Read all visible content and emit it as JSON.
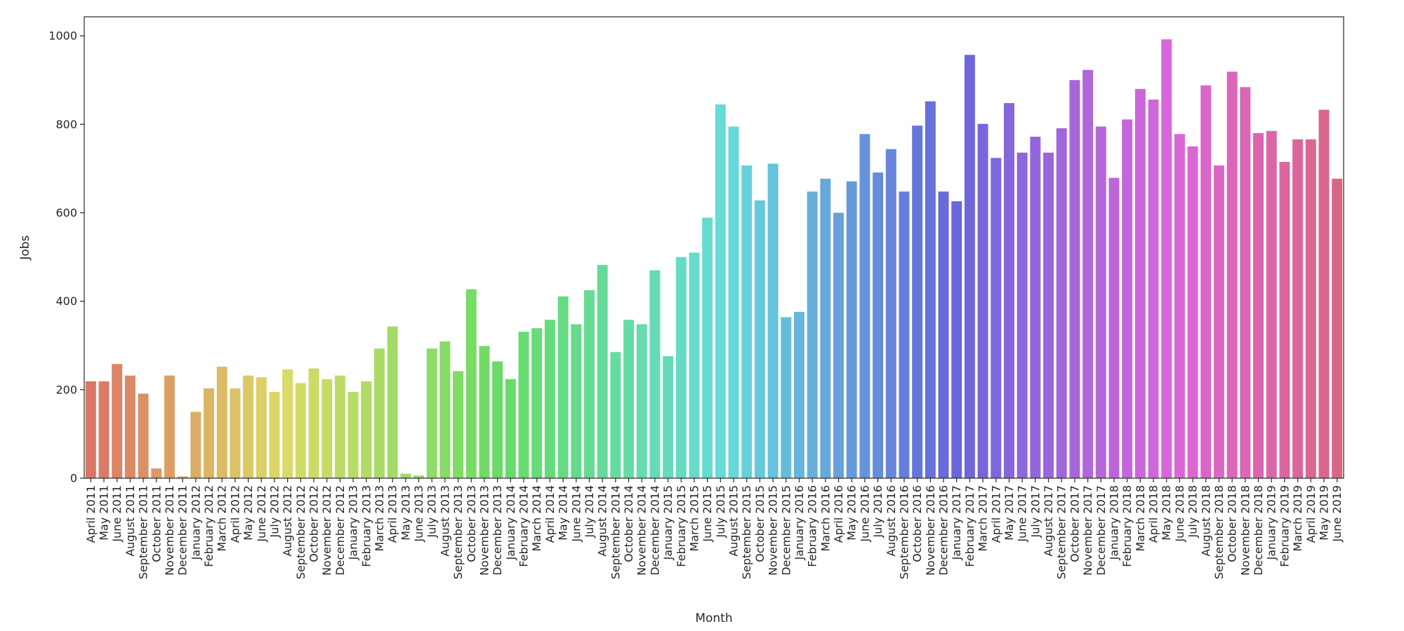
{
  "chart_data": {
    "type": "bar",
    "title": "",
    "xlabel": "Month",
    "ylabel": "Jobs",
    "ylim": [
      0,
      1043
    ],
    "yticks": [
      0,
      200,
      400,
      600,
      800,
      1000
    ],
    "grid": false,
    "legend": "none",
    "categories": [
      "April 2011",
      "May 2011",
      "June 2011",
      "August 2011",
      "September 2011",
      "October 2011",
      "November 2011",
      "December 2011",
      "January 2012",
      "February 2012",
      "March 2012",
      "April 2012",
      "May 2012",
      "June 2012",
      "July 2012",
      "August 2012",
      "September 2012",
      "October 2012",
      "November 2012",
      "December 2012",
      "January 2013",
      "February 2013",
      "March 2013",
      "April 2013",
      "May 2013",
      "June 2013",
      "July 2013",
      "August 2013",
      "September 2013",
      "October 2013",
      "November 2013",
      "December 2013",
      "January 2014",
      "February 2014",
      "March 2014",
      "April 2014",
      "May 2014",
      "June 2014",
      "July 2014",
      "August 2014",
      "September 2014",
      "October 2014",
      "November 2014",
      "December 2014",
      "January 2015",
      "February 2015",
      "March 2015",
      "June 2015",
      "July 2015",
      "August 2015",
      "September 2015",
      "October 2015",
      "November 2015",
      "December 2015",
      "January 2016",
      "February 2016",
      "March 2016",
      "April 2016",
      "May 2016",
      "June 2016",
      "July 2016",
      "August 2016",
      "September 2016",
      "October 2016",
      "November 2016",
      "December 2016",
      "January 2017",
      "February 2017",
      "March 2017",
      "April 2017",
      "May 2017",
      "June 2017",
      "July 2017",
      "August 2017",
      "September 2017",
      "October 2017",
      "November 2017",
      "December 2017",
      "January 2018",
      "February 2018",
      "March 2018",
      "April 2018",
      "May 2018",
      "June 2018",
      "July 2018",
      "August 2018",
      "September 2018",
      "October 2018",
      "November 2018",
      "December 2018",
      "January 2019",
      "February 2019",
      "March 2019",
      "April 2019",
      "May 2019",
      "June 2019"
    ],
    "values": [
      219,
      219,
      258,
      232,
      191,
      22,
      232,
      4,
      150,
      203,
      252,
      203,
      232,
      228,
      195,
      246,
      215,
      248,
      224,
      232,
      195,
      219,
      293,
      343,
      10,
      6,
      293,
      309,
      242,
      427,
      299,
      264,
      224,
      331,
      339,
      358,
      411,
      348,
      425,
      482,
      285,
      358,
      348,
      470,
      276,
      500,
      510,
      589,
      845,
      795,
      707,
      628,
      711,
      364,
      376,
      648,
      677,
      600,
      671,
      778,
      691,
      744,
      648,
      797,
      852,
      648,
      626,
      957,
      801,
      724,
      848,
      736,
      772,
      736,
      791,
      900,
      923,
      795,
      679,
      811,
      880,
      856,
      992,
      778,
      750,
      888,
      707,
      919,
      884,
      780,
      785,
      715,
      766,
      766,
      833,
      677
    ],
    "palette": "husl"
  }
}
